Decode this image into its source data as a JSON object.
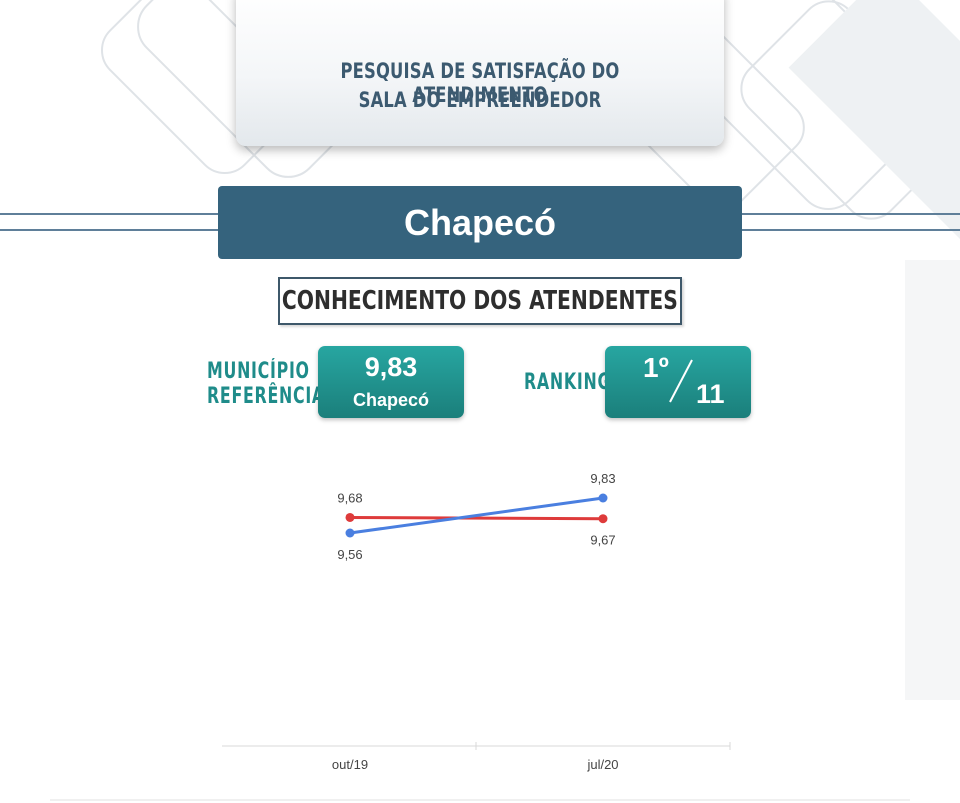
{
  "header": {
    "line1": "PESQUISA DE SATISFAÇÃO DO ATENDIMENTO",
    "line2": "SALA DO EMPREENDEDOR"
  },
  "city_banner": "Chapecó",
  "section_title": "CONHECIMENTO DOS ATENDENTES",
  "reference": {
    "label_line1": "MUNICÍPIO",
    "label_line2": "REFERÊNCIA",
    "value": "9,83",
    "city": "Chapecó"
  },
  "ranking": {
    "label": "RANKING",
    "position": "1º",
    "total": "11"
  },
  "colors": {
    "banner": "#35637d",
    "teal": "#1f8c8a",
    "series_blue": "#4a7fe0",
    "series_red": "#de3b3b"
  },
  "chart_data": {
    "type": "line",
    "categories": [
      "out/19",
      "jul/20"
    ],
    "series": [
      {
        "color": "#4a7fe0",
        "values": [
          9.56,
          9.83
        ],
        "labels": [
          "9,56",
          "9,83"
        ],
        "label_position": [
          "below",
          "above"
        ]
      },
      {
        "color": "#de3b3b",
        "values": [
          9.68,
          9.67
        ],
        "labels": [
          "9,68",
          "9,67"
        ],
        "label_position": [
          "above",
          "below"
        ]
      }
    ],
    "title": "",
    "xlabel": "",
    "ylabel": "",
    "grid": false,
    "legend": "none"
  }
}
